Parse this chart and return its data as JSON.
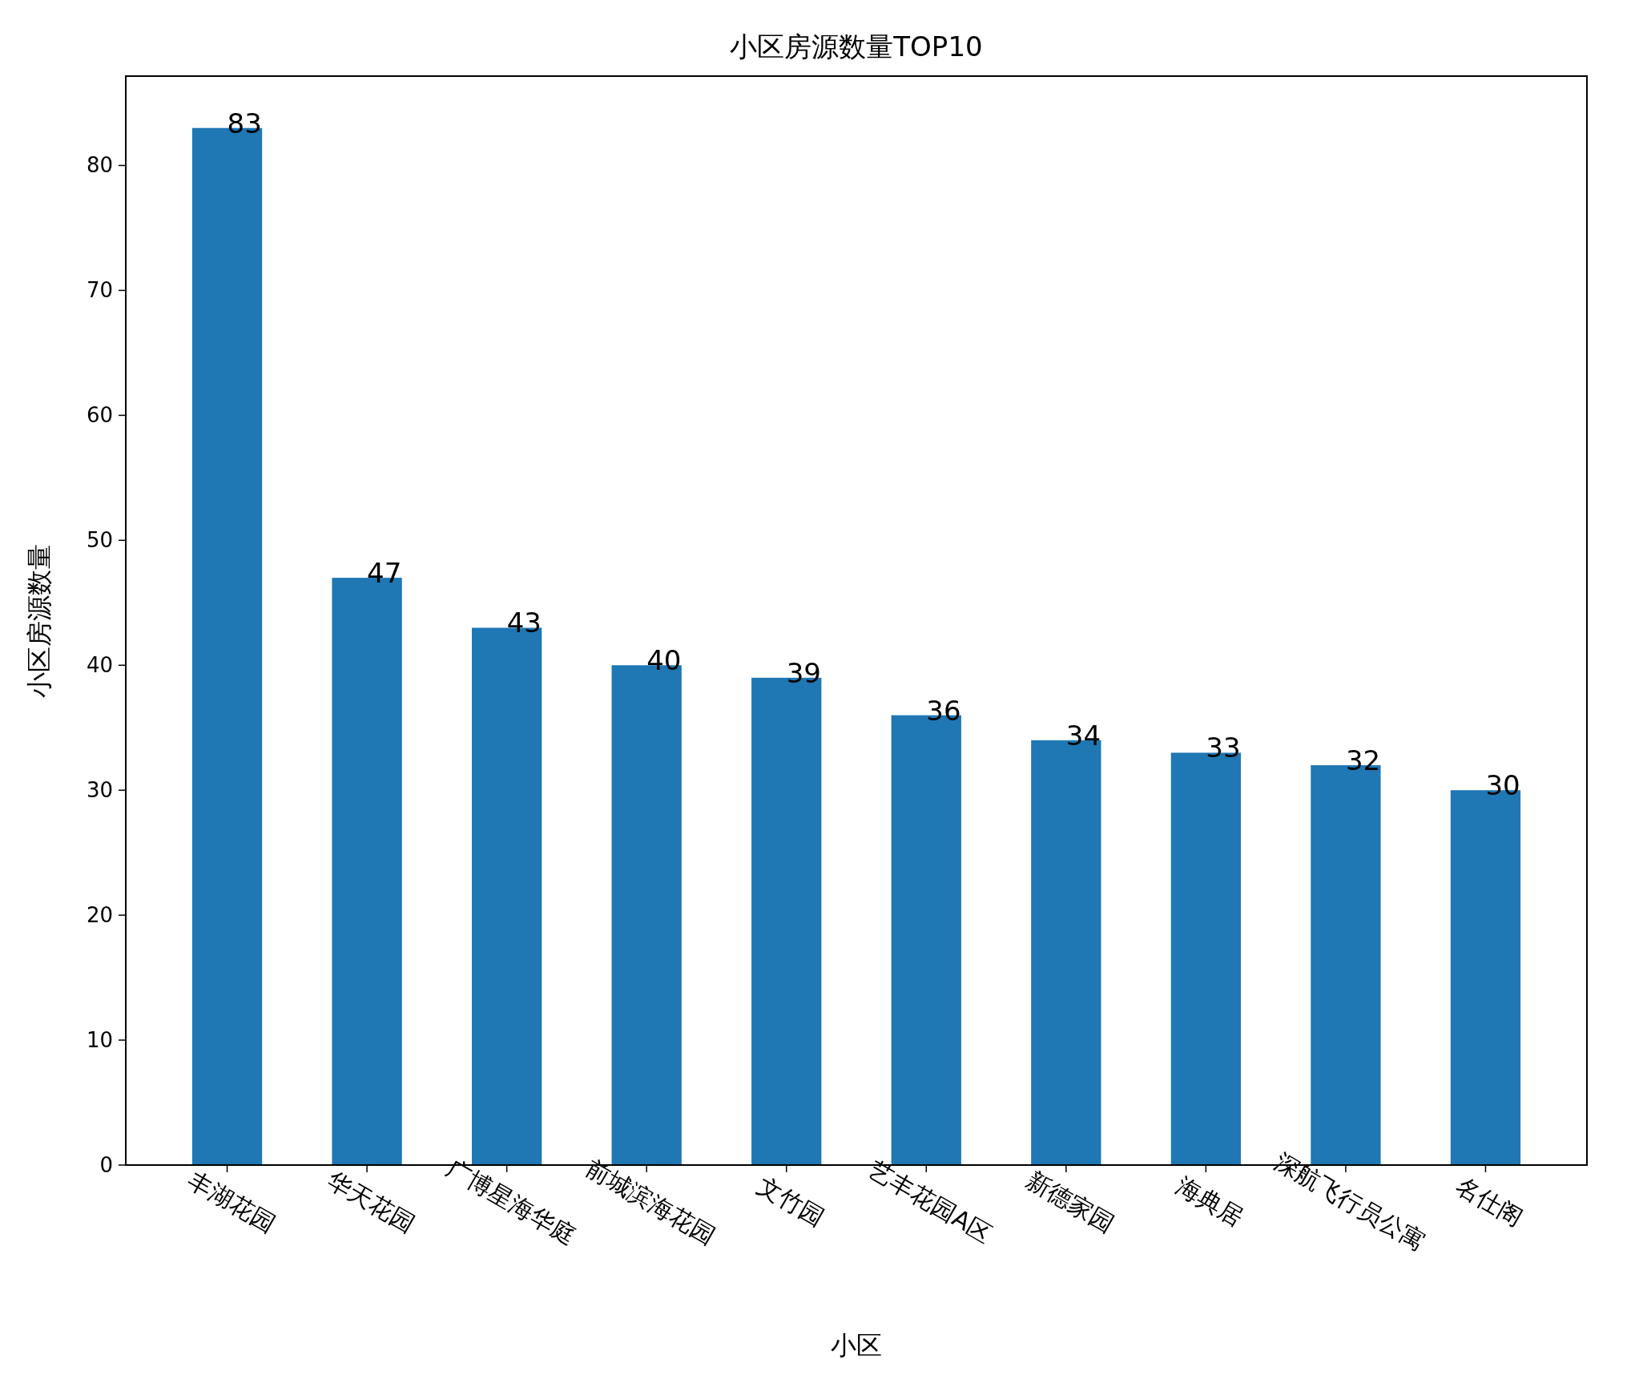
{
  "chart_data": {
    "type": "bar",
    "title": "小区房源数量TOP10",
    "xlabel": "小区",
    "ylabel": "小区房源数量",
    "categories": [
      "丰湖花园",
      "华天花园",
      "广博星海华庭",
      "前城滨海花园",
      "文竹园",
      "艺丰花园A区",
      "新德家园",
      "海典居",
      "深航飞行员公寓",
      "名仕阁"
    ],
    "values": [
      83,
      47,
      43,
      40,
      39,
      36,
      34,
      33,
      32,
      30
    ],
    "color": "#1f77b4",
    "ylim": [
      0,
      87.15
    ],
    "yticks": [
      0,
      10,
      20,
      30,
      40,
      50,
      60,
      70,
      80
    ],
    "data_labels": true
  }
}
